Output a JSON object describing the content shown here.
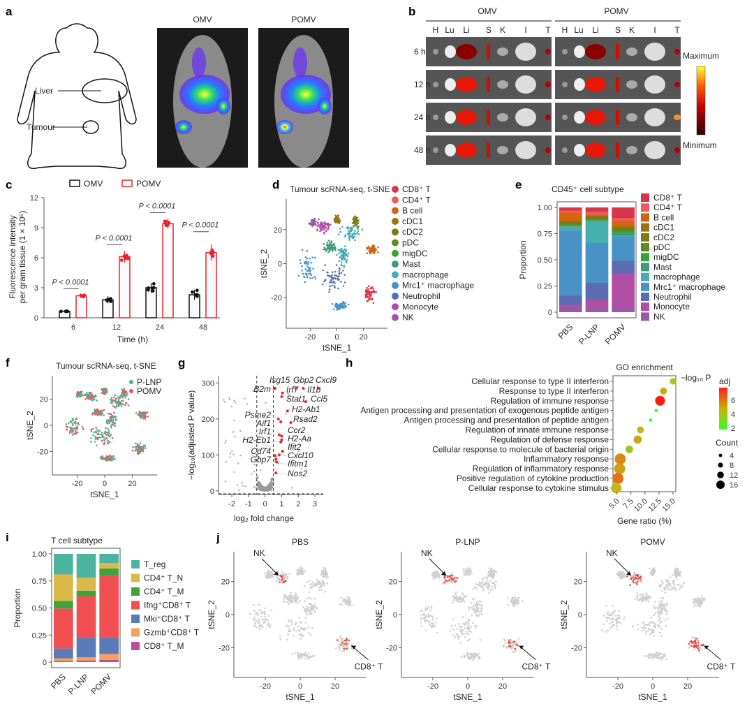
{
  "panels": [
    "a",
    "b",
    "c",
    "d",
    "e",
    "f",
    "g",
    "h",
    "i",
    "j"
  ],
  "a": {
    "labels": [
      "Liver",
      "Tumour"
    ],
    "images": [
      "OMV",
      "POMV"
    ]
  },
  "b": {
    "groups": [
      "OMV",
      "POMV"
    ],
    "organs": [
      "H",
      "Lu",
      "Li",
      "S",
      "K",
      "I",
      "T"
    ],
    "times": [
      "6 h",
      "12 h",
      "24 h",
      "48 h"
    ],
    "colorbar": {
      "max_label": "Maximum",
      "min_label": "Minimum"
    }
  },
  "chart_data": [
    {
      "id": "c",
      "type": "bar",
      "xlabel": "Time (h)",
      "ylabel": "Fluorescence intensity per gram tissue (1 × 10^6)",
      "ylabel_lines": [
        "Fluorescence intensity",
        "per gram tissue (1 × 10⁶)"
      ],
      "ylim": [
        0,
        12
      ],
      "yticks": [
        "0",
        "3",
        "6",
        "9",
        "12"
      ],
      "categories": [
        "6",
        "12",
        "24",
        "48"
      ],
      "series": [
        {
          "name": "OMV",
          "color": "#111111",
          "values": [
            0.65,
            1.8,
            3.0,
            2.3
          ],
          "errors": [
            0.12,
            0.35,
            0.5,
            0.5
          ]
        },
        {
          "name": "POMV",
          "color": "#e8242a",
          "values": [
            2.2,
            6.1,
            9.4,
            6.5
          ],
          "errors": [
            0.2,
            0.6,
            0.5,
            0.8
          ]
        }
      ],
      "annotations": [
        "P < 0.0001",
        "P < 0.0001",
        "P < 0.0001",
        "P < 0.0001"
      ]
    },
    {
      "id": "d",
      "type": "scatter",
      "title": "Tumour scRNA-seq, t-SNE",
      "xlabel": "tSNE_1",
      "ylabel": "tSNE_2",
      "xticks": [
        "-20",
        "0",
        "20"
      ],
      "yticks": [
        "-20",
        "0",
        "20"
      ],
      "xlim": [
        -38,
        38
      ],
      "ylim": [
        -38,
        38
      ],
      "legend": [
        {
          "label": "CD8⁺ T",
          "color": "#d7364a"
        },
        {
          "label": "CD4⁺ T",
          "color": "#f15a5a"
        },
        {
          "label": "B cell",
          "color": "#d4650f"
        },
        {
          "label": "cDC1",
          "color": "#96760f"
        },
        {
          "label": "cDC2",
          "color": "#7a7a16"
        },
        {
          "label": "pDC",
          "color": "#5e8c1e"
        },
        {
          "label": "migDC",
          "color": "#3aa23a"
        },
        {
          "label": "Mast",
          "color": "#3e9a78"
        },
        {
          "label": "macrophage",
          "color": "#45aeae"
        },
        {
          "label": "Mrc1⁺ macrophage",
          "color": "#4892c6"
        },
        {
          "label": "Neutrophil",
          "color": "#5a6db2"
        },
        {
          "label": "Monocyte",
          "color": "#b04ea6"
        },
        {
          "label": "NK",
          "color": "#9a58a8"
        }
      ]
    },
    {
      "id": "e",
      "type": "bar",
      "stacked": true,
      "title": "CD45⁺ cell subtype",
      "ylabel": "Proportion",
      "ylim": [
        0,
        1
      ],
      "yticks": [
        "0",
        "0.25",
        "0.50",
        "0.75",
        "1.00"
      ],
      "categories": [
        "PBS",
        "P-LNP",
        "POMV"
      ],
      "series": [
        {
          "name": "NK",
          "color": "#9a58a8",
          "values": [
            0.04,
            0.04,
            0.05
          ]
        },
        {
          "name": "Monocyte",
          "color": "#b04ea6",
          "values": [
            0.03,
            0.08,
            0.32
          ]
        },
        {
          "name": "Neutrophil",
          "color": "#5a6db2",
          "values": [
            0.09,
            0.16,
            0.12
          ]
        },
        {
          "name": "Mrc1⁺ macrophage",
          "color": "#4892c6",
          "values": [
            0.625,
            0.38,
            0.23
          ]
        },
        {
          "name": "macrophage",
          "color": "#45aeae",
          "values": [
            0.03,
            0.21,
            0.01
          ]
        },
        {
          "name": "Mast",
          "color": "#3e9a78",
          "values": [
            0.01,
            0.005,
            0.03
          ]
        },
        {
          "name": "migDC",
          "color": "#3aa23a",
          "values": [
            0.005,
            0.005,
            0.01
          ]
        },
        {
          "name": "pDC",
          "color": "#5e8c1e",
          "values": [
            0.01,
            0.01,
            0.02
          ]
        },
        {
          "name": "cDC2",
          "color": "#7a7a16",
          "values": [
            0.02,
            0.02,
            0.02
          ]
        },
        {
          "name": "cDC1",
          "color": "#96760f",
          "values": [
            0.01,
            0.01,
            0.01
          ]
        },
        {
          "name": "B cell",
          "color": "#d4650f",
          "values": [
            0.08,
            0.01,
            0.05
          ]
        },
        {
          "name": "CD4⁺ T",
          "color": "#f15a5a",
          "values": [
            0.02,
            0.025,
            0.03
          ]
        },
        {
          "name": "CD8⁺ T",
          "color": "#d7364a",
          "values": [
            0.03,
            0.045,
            0.1
          ]
        }
      ]
    },
    {
      "id": "f",
      "type": "scatter",
      "title": "Tumour scRNA-seq, t-SNE",
      "xlabel": "tSNE_1",
      "ylabel": "tSNE_2",
      "xticks": [
        "-20",
        "0",
        "20"
      ],
      "yticks": [
        "-20",
        "0",
        "20"
      ],
      "legend": [
        {
          "label": "P-LNP",
          "color": "#3fb59a"
        },
        {
          "label": "POMV",
          "color": "#f0585a"
        }
      ]
    },
    {
      "id": "g",
      "type": "scatter",
      "xlabel": "log₂ fold change",
      "ylabel": "−log₁₀(adjusted P value)",
      "xlim": [
        -2.8,
        3.5
      ],
      "ylim": [
        -10,
        320
      ],
      "xticks": [
        "-2",
        "-1",
        "0",
        "1",
        "2",
        "3"
      ],
      "yticks": [
        "0",
        "100",
        "200",
        "300"
      ],
      "thresholds": {
        "x": [
          -0.5,
          0.5
        ],
        "y": -8
      },
      "labelled_genes": [
        {
          "gene": "Isg15",
          "x": 0.6,
          "y": 285
        },
        {
          "gene": "Irf7",
          "x": 1.05,
          "y": 272
        },
        {
          "gene": "B2m",
          "x": 0.55,
          "y": 285
        },
        {
          "gene": "Gbp2",
          "x": 1.85,
          "y": 285
        },
        {
          "gene": "Il1b",
          "x": 2.3,
          "y": 285
        },
        {
          "gene": "Cxcl9",
          "x": 3.25,
          "y": 285
        },
        {
          "gene": "Ccl5",
          "x": 2.45,
          "y": 248
        },
        {
          "gene": "Stat1",
          "x": 1.0,
          "y": 262
        },
        {
          "gene": "H2-Ab1",
          "x": 1.35,
          "y": 222
        },
        {
          "gene": "Psme2",
          "x": 0.8,
          "y": 200
        },
        {
          "gene": "Aif1",
          "x": 0.95,
          "y": 192
        },
        {
          "gene": "Rsad2",
          "x": 1.55,
          "y": 190
        },
        {
          "gene": "Irf1",
          "x": 0.85,
          "y": 156
        },
        {
          "gene": "Ccr2",
          "x": 1.0,
          "y": 152
        },
        {
          "gene": "H2-Aa",
          "x": 1.0,
          "y": 142
        },
        {
          "gene": "H2-Eb1",
          "x": 0.95,
          "y": 136
        },
        {
          "gene": "Ifit2",
          "x": 1.05,
          "y": 110
        },
        {
          "gene": "Cxcl10",
          "x": 0.85,
          "y": 100
        },
        {
          "gene": "Cd74",
          "x": 0.6,
          "y": 98
        },
        {
          "gene": "Gbp7",
          "x": 0.65,
          "y": 88
        },
        {
          "gene": "Ifitm1",
          "x": 0.7,
          "y": 80
        },
        {
          "gene": "Nos2",
          "x": 0.65,
          "y": 50
        }
      ]
    },
    {
      "id": "h",
      "type": "scatter",
      "title": "GO enrichment",
      "xlabel": "Gene ratio (%)",
      "xlim": [
        4.3,
        15.5
      ],
      "xticks": [
        "5.0",
        "7.5",
        "10.0",
        "12.5",
        "15.0"
      ],
      "color_label": "−log₁₀ P",
      "color_label_sub": "adj",
      "color_ticks": [
        "2",
        "4",
        "6"
      ],
      "size_label": "Count",
      "size_ticks": [
        "4",
        "8",
        "12",
        "16"
      ],
      "terms": [
        {
          "term": "Cellular response to type II interferon",
          "ratio": 15.0,
          "count": 8,
          "neglog10p": 4.5
        },
        {
          "term": "Response to type II interferon",
          "ratio": 13.3,
          "count": 9,
          "neglog10p": 5.0
        },
        {
          "term": "Regulation of immune response",
          "ratio": 12.7,
          "count": 14,
          "neglog10p": 7.6
        },
        {
          "term": "Antigen processing and presentation of exogenous peptide antigen",
          "ratio": 12.0,
          "count": 3,
          "neglog10p": 2.0
        },
        {
          "term": "Antigen processing and presentation of peptide antigen",
          "ratio": 11.0,
          "count": 3,
          "neglog10p": 2.0
        },
        {
          "term": "Regulation of innate immune response",
          "ratio": 9.2,
          "count": 9,
          "neglog10p": 4.8
        },
        {
          "term": "Regulation of defense response",
          "ratio": 8.7,
          "count": 11,
          "neglog10p": 5.0
        },
        {
          "term": "Cellular response to molecule of bacterial origin",
          "ratio": 7.2,
          "count": 10,
          "neglog10p": 4.0
        },
        {
          "term": "Inflammatory response",
          "ratio": 5.6,
          "count": 16,
          "neglog10p": 5.6
        },
        {
          "term": "Regulation of inflammatory response",
          "ratio": 5.5,
          "count": 16,
          "neglog10p": 5.2
        },
        {
          "term": "Positive regulation of cytokine production",
          "ratio": 5.2,
          "count": 16,
          "neglog10p": 6.0
        },
        {
          "term": "Cellular response to cytokine stimulus",
          "ratio": 4.9,
          "count": 15,
          "neglog10p": 4.8
        }
      ]
    },
    {
      "id": "i",
      "type": "bar",
      "stacked": true,
      "title": "T cell subtype",
      "ylabel": "Proportion",
      "ylim": [
        0,
        1
      ],
      "yticks": [
        "0",
        "0.25",
        "0.50",
        "0.75",
        "1.00"
      ],
      "categories": [
        "PBS",
        "P-LNP",
        "POMV"
      ],
      "series": [
        {
          "name": "CD8⁺ T_M",
          "color": "#b54fa0",
          "values": [
            0.01,
            0.015,
            0.02
          ]
        },
        {
          "name": "Gzmb⁺CD8⁺ T",
          "color": "#f5a05a",
          "values": [
            0.025,
            0.03,
            0.055
          ]
        },
        {
          "name": "Mki⁺CD8⁺ T",
          "color": "#5b7ab8",
          "values": [
            0.09,
            0.18,
            0.155
          ]
        },
        {
          "name": "Ifng⁺CD8⁺ T",
          "color": "#f05052",
          "values": [
            0.37,
            0.385,
            0.565
          ]
        },
        {
          "name": "CD4⁺ T_M",
          "color": "#3ea33a",
          "values": [
            0.07,
            0.05,
            0.07
          ]
        },
        {
          "name": "CD4⁺ T_N",
          "color": "#dbb84a",
          "values": [
            0.245,
            0.12,
            0.05
          ]
        },
        {
          "name": "T_reg",
          "color": "#4bb3a0",
          "values": [
            0.19,
            0.22,
            0.085
          ]
        }
      ]
    },
    {
      "id": "j",
      "type": "scatter",
      "xlabel": "tSNE_1",
      "ylabel": "tSNE_2",
      "xticks": [
        "-20",
        "0",
        "20"
      ],
      "yticks": [
        "-20",
        "0",
        "20"
      ],
      "subplots": [
        "PBS",
        "P-LNP",
        "POMV"
      ],
      "annotations": [
        "NK",
        "CD8⁺ T"
      ]
    }
  ]
}
